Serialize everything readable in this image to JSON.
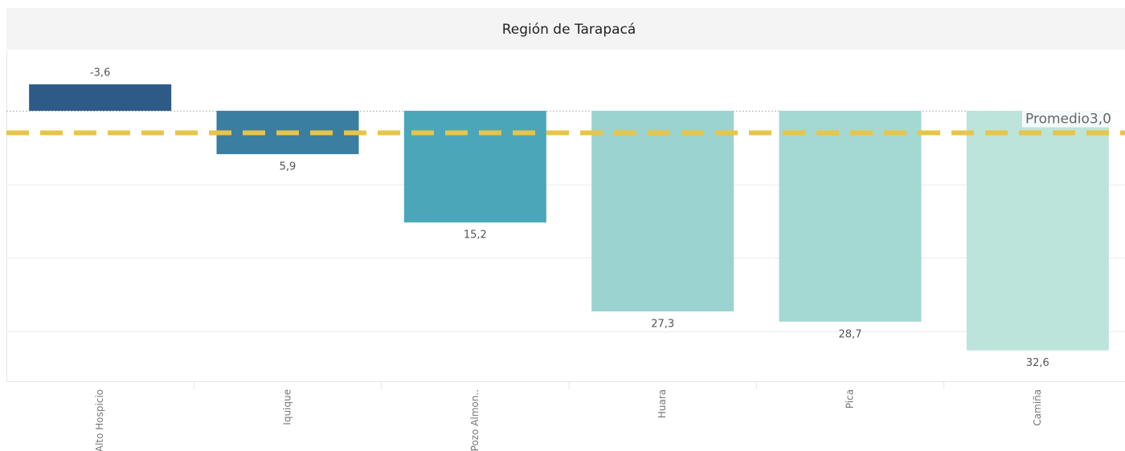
{
  "chart_data": {
    "type": "bar",
    "title": "Región de Tarapacá",
    "categories": [
      "Alto Hospicio",
      "Iquique",
      "Pozo Almon..",
      "Huara",
      "Pica",
      "Camiña"
    ],
    "values": [
      -3.6,
      5.9,
      15.2,
      27.3,
      28.7,
      32.6
    ],
    "value_labels": [
      "-3,6",
      "5,9",
      "15,2",
      "27,3",
      "28,7",
      "32,6"
    ],
    "colors": [
      "#2e5a87",
      "#3a7ea1",
      "#4ba6ba",
      "#9ad3d0",
      "#a4d8d3",
      "#bce4da"
    ],
    "ylim": [
      -8.2,
      36.8
    ],
    "y_inverted": true,
    "yticks": [
      0,
      10,
      20,
      30
    ],
    "grid": true,
    "reference_line": {
      "label": "Promedio",
      "value": 3.0,
      "value_label": "3,0",
      "color": "#e8c547"
    }
  }
}
